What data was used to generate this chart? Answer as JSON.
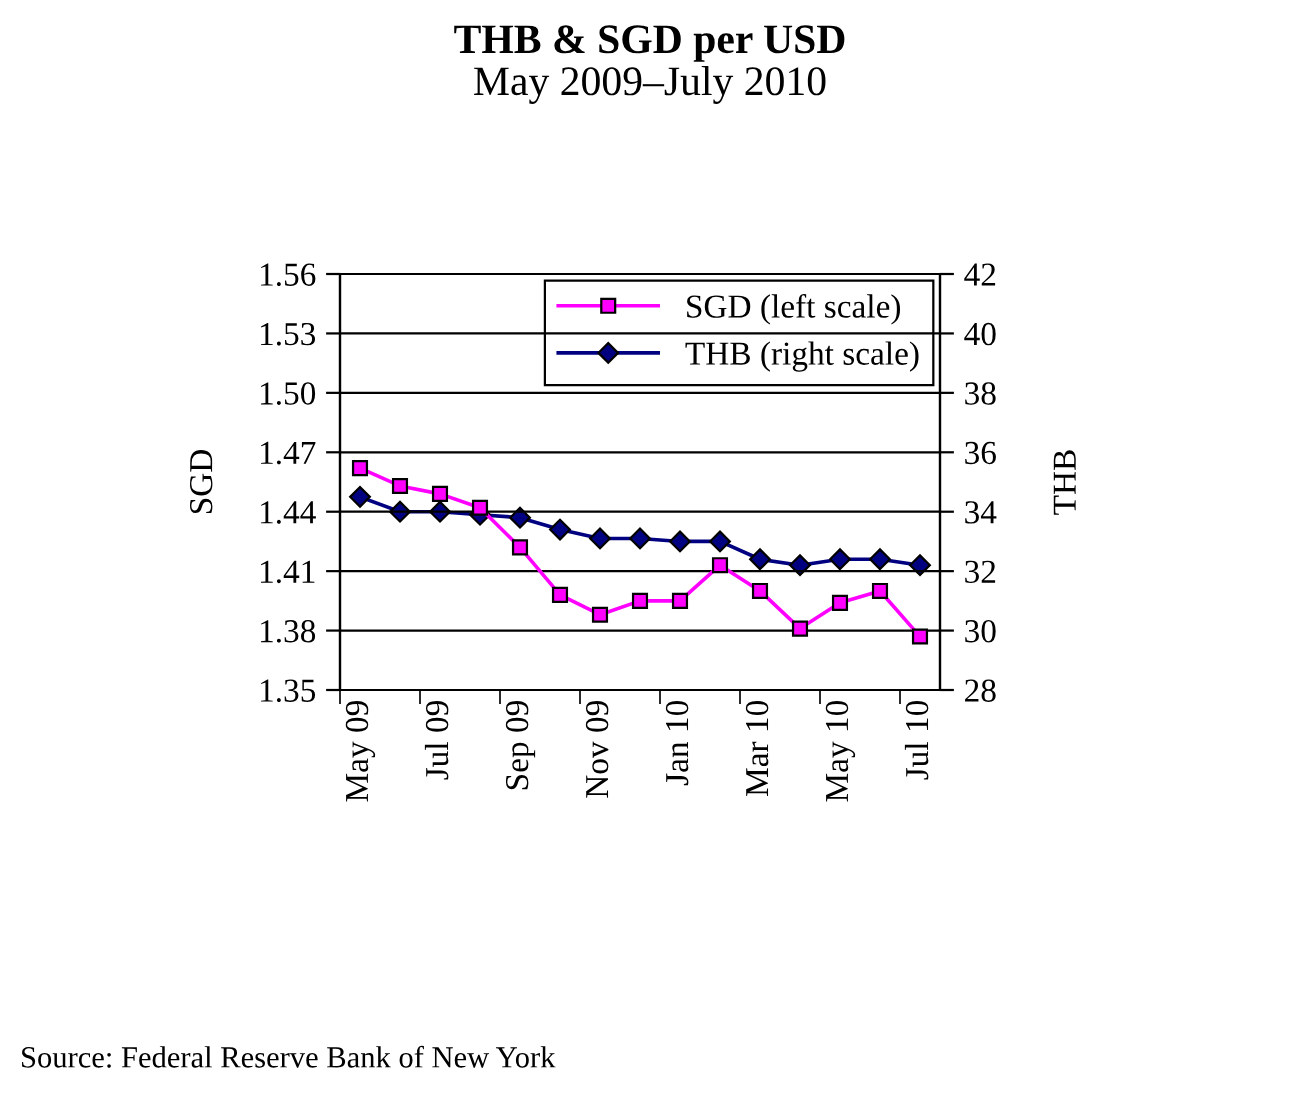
{
  "chart_data": {
    "type": "line",
    "title": "THB & SGD per USD",
    "subtitle": "May 2009–July 2010",
    "ylabel": "SGD",
    "y2label": "THB",
    "categories": [
      "May 09",
      null,
      "Jul 09",
      null,
      "Sep 09",
      null,
      "Nov 09",
      null,
      "Jan 10",
      null,
      "Mar 10",
      null,
      "May 10",
      null,
      "Jul 10"
    ],
    "series": [
      {
        "name": "SGD (left scale)",
        "color": "#ff00ff",
        "marker": "square",
        "values": [
          1.462,
          1.453,
          1.449,
          1.442,
          1.422,
          1.398,
          1.388,
          1.395,
          1.395,
          1.413,
          1.4,
          1.381,
          1.394,
          1.4,
          1.377
        ]
      },
      {
        "name": "THB (right scale)",
        "color": "#000080",
        "marker": "diamond",
        "axis": "y2",
        "values": [
          34.5,
          34.0,
          34.0,
          33.9,
          33.8,
          33.4,
          33.1,
          33.1,
          33.0,
          33.0,
          32.4,
          32.2,
          32.4,
          32.4,
          32.2
        ]
      }
    ],
    "ylim": [
      1.35,
      1.56
    ],
    "yticks": [
      {
        "value": 1.35,
        "label": "1.35"
      },
      {
        "value": 1.38,
        "label": "1.38"
      },
      {
        "value": 1.41,
        "label": "1.41"
      },
      {
        "value": 1.44,
        "label": "1.44"
      },
      {
        "value": 1.47,
        "label": "1.47"
      },
      {
        "value": 1.5,
        "label": "1.50"
      },
      {
        "value": 1.53,
        "label": "1.53"
      },
      {
        "value": 1.56,
        "label": "1.56"
      }
    ],
    "y2lim": [
      28,
      42
    ],
    "y2ticks": [
      28,
      30,
      32,
      34,
      36,
      38,
      40,
      42
    ],
    "grid": "y",
    "legend": "top right",
    "annotations": [
      "Source: Federal Reserve Bank of New York"
    ]
  }
}
